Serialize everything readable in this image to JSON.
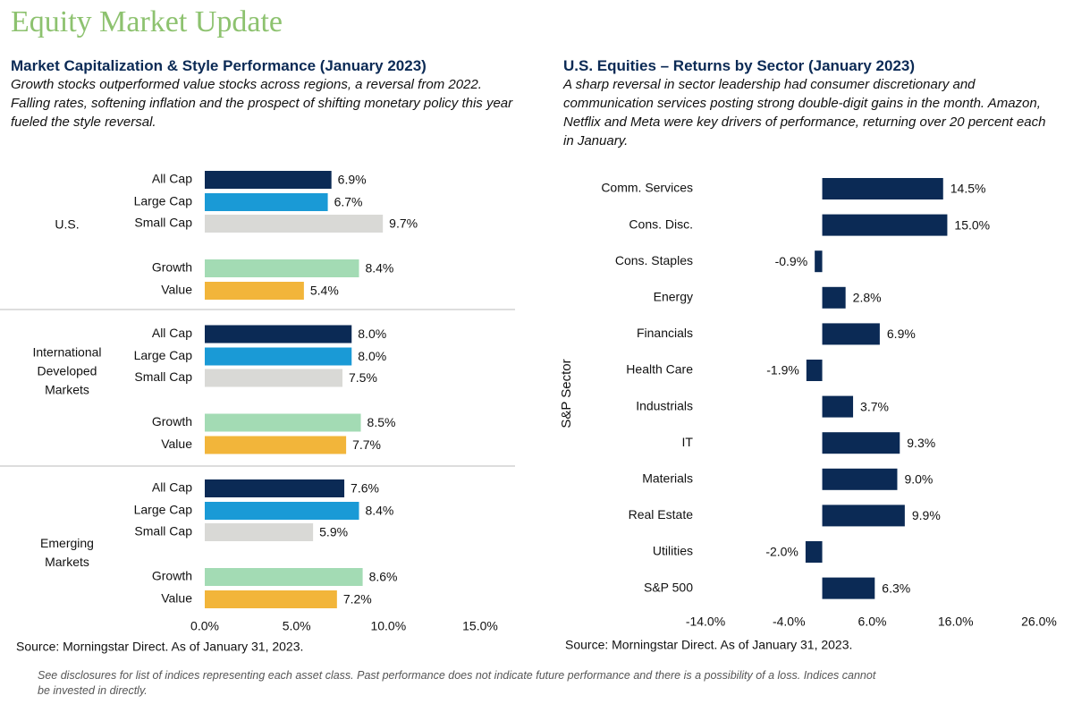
{
  "title": "Equity Market Update",
  "chart_data": [
    {
      "type": "bar",
      "orientation": "horizontal",
      "title": "Market Capitalization & Style Performance (January 2023)",
      "subtitle": "Growth stocks outperformed value stocks across regions, a reversal from 2022. Falling rates, softening inflation and the prospect of shifting monetary policy this year fueled the style reversal.",
      "colors": [
        "#0b2a55",
        "#1a9ad6",
        "#d9d9d6",
        "#a3dbb4",
        "#f2b53a"
      ],
      "groups": [
        {
          "name": "U.S.",
          "categories": [
            "All Cap",
            "Large Cap",
            "Small Cap",
            "Growth",
            "Value"
          ],
          "values": [
            6.9,
            6.7,
            9.7,
            8.4,
            5.4
          ],
          "value_labels": [
            "6.9%",
            "6.7%",
            "9.7%",
            "8.4%",
            "5.4%"
          ]
        },
        {
          "name": "International Developed Markets",
          "categories": [
            "All Cap",
            "Large Cap",
            "Small Cap",
            "Growth",
            "Value"
          ],
          "values": [
            8.0,
            8.0,
            7.5,
            8.5,
            7.7
          ],
          "value_labels": [
            "8.0%",
            "8.0%",
            "7.5%",
            "8.5%",
            "7.7%"
          ]
        },
        {
          "name": "Emerging Markets",
          "categories": [
            "All Cap",
            "Large Cap",
            "Small Cap",
            "Growth",
            "Value"
          ],
          "values": [
            7.6,
            8.4,
            5.9,
            8.6,
            7.2
          ],
          "value_labels": [
            "7.6%",
            "8.4%",
            "5.9%",
            "8.6%",
            "7.2%"
          ]
        }
      ],
      "xlim": [
        0,
        15
      ],
      "xticks": [
        {
          "value": 0,
          "label": "0.0%"
        },
        {
          "value": 5,
          "label": "5.0%"
        },
        {
          "value": 10,
          "label": "10.0%"
        },
        {
          "value": 15,
          "label": "15.0%"
        }
      ],
      "source": "Source: Morningstar Direct. As of January 31, 2023."
    },
    {
      "type": "bar",
      "orientation": "horizontal",
      "title": "U.S. Equities – Returns by Sector (January 2023)",
      "subtitle": "A sharp reversal in sector leadership had consumer discretionary and communication services posting strong double-digit gains in the month. Amazon, Netflix and Meta were key drivers of performance, returning over 20 percent each in January.",
      "ylabel": "S&P Sector",
      "color": "#0b2a55",
      "categories": [
        "Comm. Services",
        "Cons. Disc.",
        "Cons. Staples",
        "Energy",
        "Financials",
        "Health Care",
        "Industrials",
        "IT",
        "Materials",
        "Real Estate",
        "Utilities",
        "S&P 500"
      ],
      "values": [
        14.5,
        15.0,
        -0.9,
        2.8,
        6.9,
        -1.9,
        3.7,
        9.3,
        9.0,
        9.9,
        -2.0,
        6.3
      ],
      "value_labels": [
        "14.5%",
        "15.0%",
        "-0.9%",
        "2.8%",
        "6.9%",
        "-1.9%",
        "3.7%",
        "9.3%",
        "9.0%",
        "9.9%",
        "-2.0%",
        "6.3%"
      ],
      "xlim": [
        -14,
        26
      ],
      "xticks": [
        {
          "value": -14,
          "label": "-14.0%"
        },
        {
          "value": -4,
          "label": "-4.0%"
        },
        {
          "value": 6,
          "label": "6.0%"
        },
        {
          "value": 16,
          "label": "16.0%"
        },
        {
          "value": 26,
          "label": "26.0%"
        }
      ],
      "source": "Source: Morningstar Direct. As of January 31, 2023."
    }
  ],
  "disclosure": "See disclosures for list of indices representing each asset class. Past performance does not indicate future performance and there is a possibility of a loss. Indices cannot be invested in directly."
}
